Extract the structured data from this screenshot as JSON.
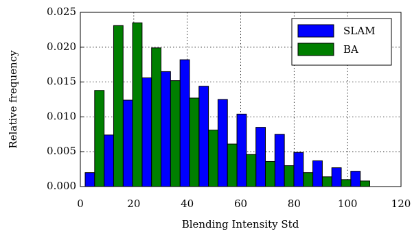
{
  "chart_data": {
    "type": "histogram",
    "xlabel": "Blending Intensity Std",
    "ylabel": "Relative frequency",
    "bins": [
      1.8,
      8.9,
      16.0,
      23.1,
      30.2,
      37.3,
      44.4,
      51.5,
      58.6,
      65.7,
      72.8,
      79.9,
      87.0,
      94.1,
      101.2,
      108.3
    ],
    "series": [
      {
        "name": "SLAM",
        "color": "#0000ff",
        "values": [
          0.002,
          0.0074,
          0.0124,
          0.0156,
          0.0165,
          0.0182,
          0.0144,
          0.0125,
          0.0104,
          0.0085,
          0.0075,
          0.0049,
          0.0037,
          0.0027,
          0.0022
        ]
      },
      {
        "name": "BA",
        "color": "#007f00",
        "values": [
          0.0138,
          0.0231,
          0.0235,
          0.0199,
          0.0152,
          0.0127,
          0.0081,
          0.0061,
          0.0046,
          0.0036,
          0.003,
          0.002,
          0.0014,
          0.001,
          0.0008
        ]
      }
    ],
    "xlim": [
      0,
      120
    ],
    "xticks": [
      0,
      20,
      40,
      60,
      80,
      100,
      120
    ],
    "ylim": [
      0,
      0.025
    ],
    "yticks": [
      {
        "value": 0,
        "label": "0.000"
      },
      {
        "value": 0.005,
        "label": "0.005"
      },
      {
        "value": 0.01,
        "label": "0.010"
      },
      {
        "value": 0.015,
        "label": "0.015"
      },
      {
        "value": 0.02,
        "label": "0.020"
      },
      {
        "value": 0.025,
        "label": "0.025"
      }
    ],
    "grid": true,
    "legend": "upper right"
  }
}
